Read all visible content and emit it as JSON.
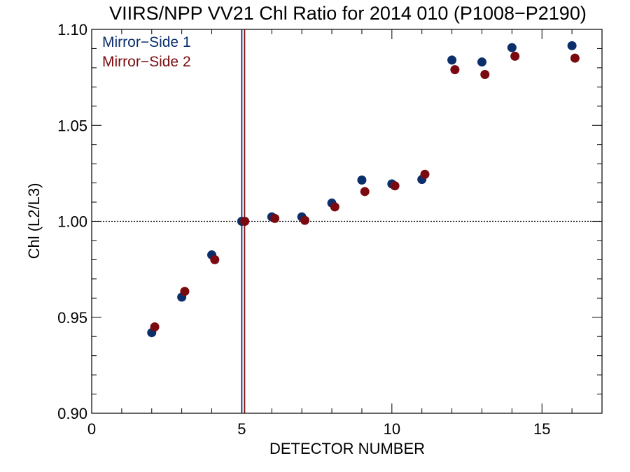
{
  "chart_data": {
    "type": "scatter",
    "title": "VIIRS/NPP VV21 Chl Ratio for 2014 010 (P1008−P2190)",
    "xlabel": "DETECTOR NUMBER",
    "ylabel": "Chl (L2/L3)",
    "xlim": [
      0,
      17
    ],
    "ylim": [
      0.9,
      1.1
    ],
    "xticks": [
      0,
      5,
      10,
      15
    ],
    "xtick_labels": [
      "0",
      "5",
      "10",
      "15"
    ],
    "yticks": [
      0.9,
      0.95,
      1.0,
      1.05,
      1.1
    ],
    "ytick_labels": [
      "0.90",
      "0.95",
      "1.00",
      "1.05",
      "1.10"
    ],
    "reference_line_y": 1.0,
    "reference_detector_x": 5,
    "grid": false,
    "legend_position": "top-left",
    "series": [
      {
        "name": "Mirror−Side 1",
        "color": "#0b2f6b",
        "x": [
          2,
          3,
          4,
          5,
          6,
          7,
          8,
          9,
          10,
          11,
          12,
          13,
          14,
          16
        ],
        "y": [
          0.942,
          0.9605,
          0.9825,
          1.0,
          1.0023,
          1.0023,
          1.0095,
          1.0215,
          1.0195,
          1.0218,
          1.084,
          1.083,
          1.0905,
          1.0915
        ]
      },
      {
        "name": "Mirror−Side 2",
        "color": "#7a0a0f",
        "x": [
          2.1,
          3.1,
          4.1,
          5.1,
          6.1,
          7.1,
          8.1,
          9.1,
          10.1,
          11.1,
          12.1,
          13.1,
          14.1,
          16.1
        ],
        "y": [
          0.945,
          0.9635,
          0.98,
          1.0,
          1.0015,
          1.0005,
          1.0075,
          1.0155,
          1.0185,
          1.0245,
          1.079,
          1.0765,
          1.086,
          1.085
        ]
      }
    ]
  }
}
